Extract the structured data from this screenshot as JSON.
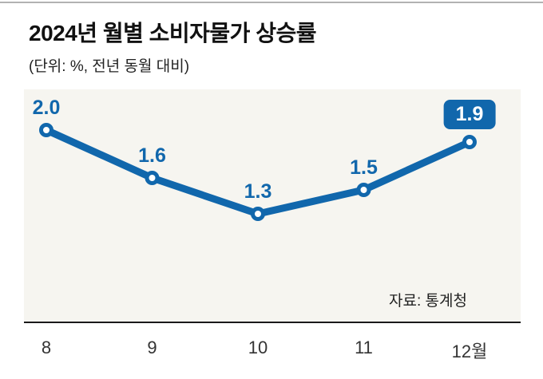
{
  "chart_data": {
    "type": "line",
    "title": "2024년 월별 소비자물가 상승률",
    "unit_note": "(단위: %, 전년 동월 대비)",
    "source": "자료: 통계청",
    "categories": [
      "8",
      "9",
      "10",
      "11",
      "12월"
    ],
    "values": [
      2.0,
      1.6,
      1.3,
      1.5,
      1.9
    ],
    "labels": [
      "2.0",
      "1.6",
      "1.3",
      "1.5",
      "1.9"
    ],
    "highlight_index": 4,
    "grid": false,
    "legend": false,
    "y_axis_visible": false,
    "line_color": "#1167ac",
    "point_fill": "#ffffff",
    "plot_background": "#f6f5f0",
    "highlight_badge_bg": "#1167ac",
    "highlight_badge_text": "#ffffff"
  }
}
